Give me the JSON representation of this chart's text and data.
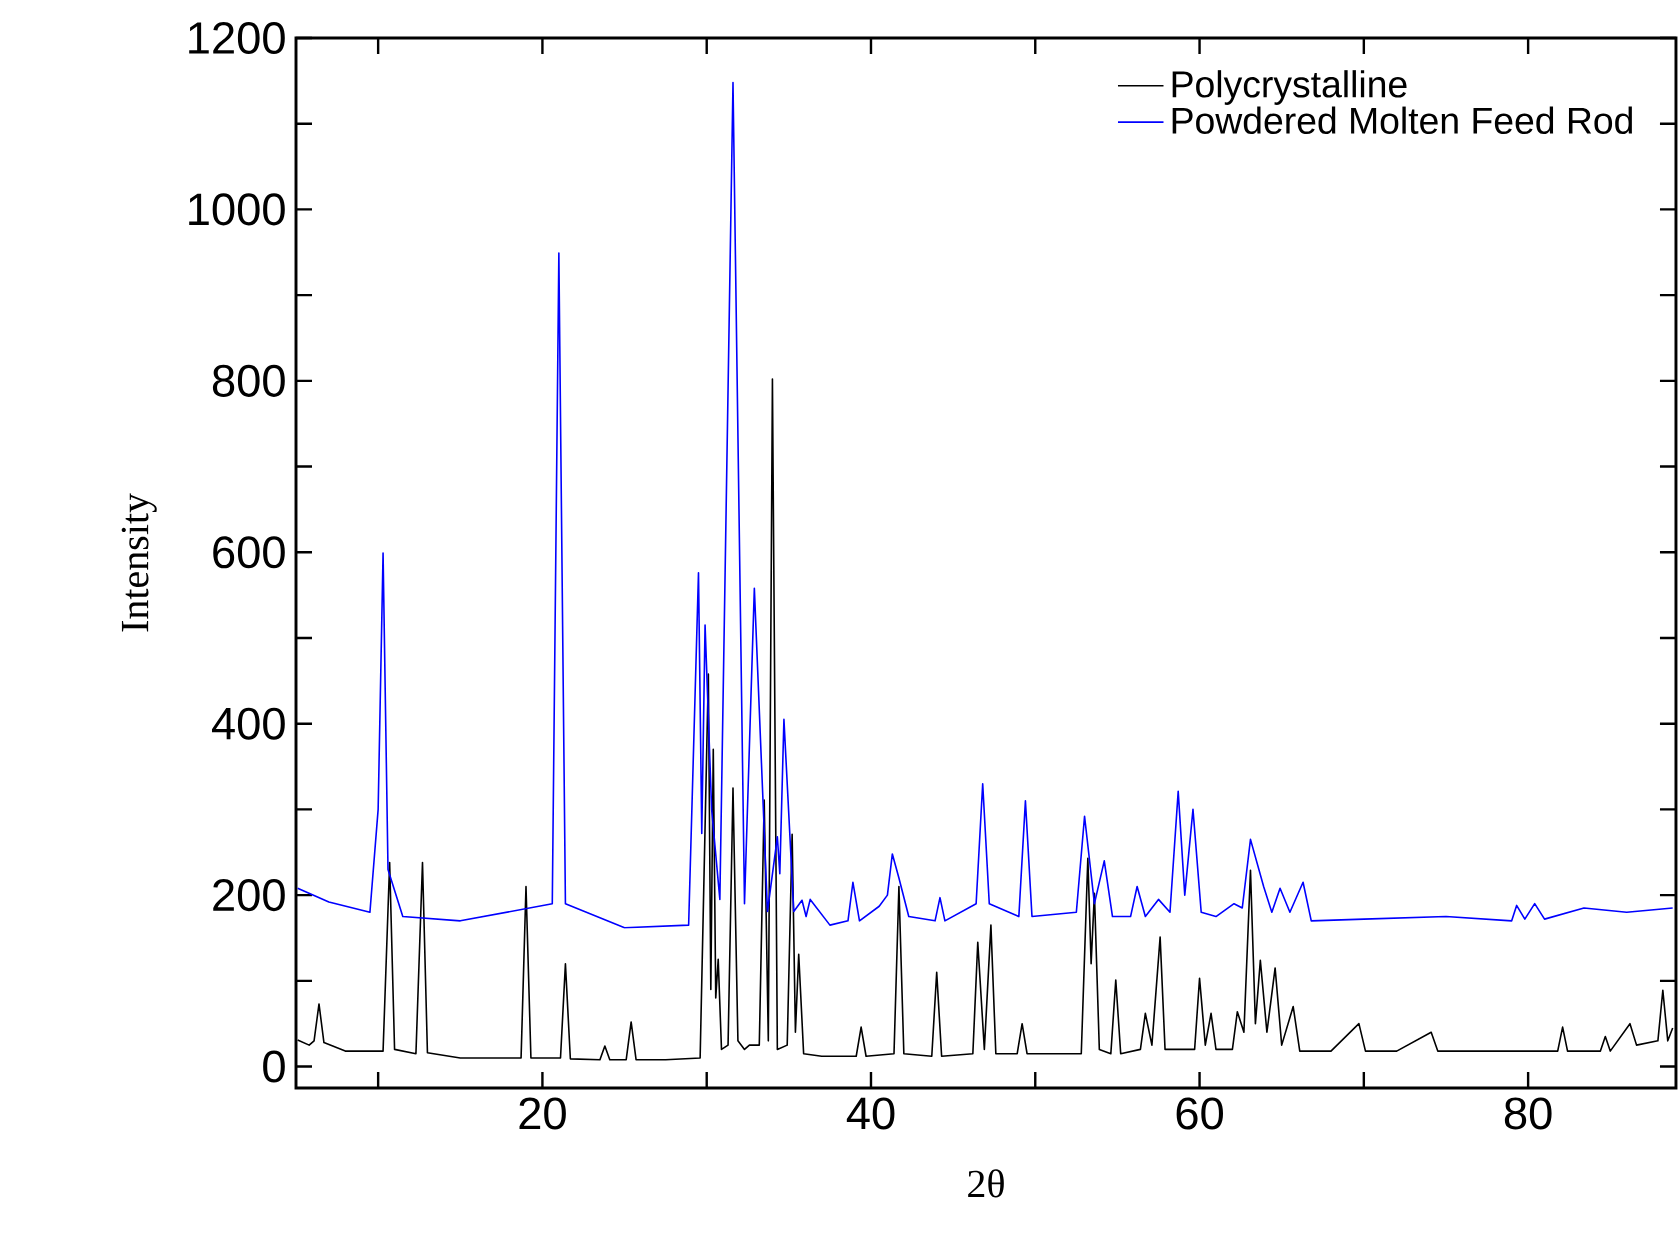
{
  "chart_data": {
    "type": "line",
    "xlabel": "2θ",
    "ylabel": "Intensity",
    "xlim": [
      5,
      89
    ],
    "ylim": [
      -25,
      1200
    ],
    "xticks": [
      {
        "value": 10,
        "label": null
      },
      20,
      {
        "value": 30,
        "label": null
      },
      40,
      {
        "value": 50,
        "label": null
      },
      60,
      {
        "value": 70,
        "label": null
      },
      80
    ],
    "yticks": [
      0,
      {
        "value": 100,
        "label": null
      },
      200,
      {
        "value": 300,
        "label": null
      },
      400,
      {
        "value": 500,
        "label": null
      },
      600,
      {
        "value": 700,
        "label": null
      },
      800,
      {
        "value": 900,
        "label": null
      },
      1000,
      {
        "value": 1100,
        "label": null
      },
      1200
    ],
    "legend": "top right",
    "series": [
      {
        "name": "Polycrystalline",
        "color": "#000000",
        "x": [
          5.1,
          5.8,
          6.1,
          6.4,
          6.7,
          8.0,
          10.3,
          10.7,
          11.0,
          12.3,
          12.7,
          13.0,
          15.0,
          18.7,
          19.0,
          19.3,
          21.1,
          21.4,
          21.7,
          23.5,
          23.8,
          24.1,
          25.1,
          25.4,
          25.7,
          27.5,
          29.6,
          30.1,
          30.25,
          30.4,
          30.55,
          30.7,
          30.9,
          31.3,
          31.6,
          31.9,
          32.3,
          32.6,
          33.2,
          33.5,
          33.75,
          34.0,
          34.3,
          34.9,
          35.2,
          35.4,
          35.6,
          35.9,
          37.0,
          39.1,
          39.4,
          39.7,
          41.4,
          41.7,
          42.0,
          43.7,
          44.0,
          44.3,
          46.2,
          46.5,
          46.9,
          47.3,
          47.6,
          48.9,
          49.2,
          49.5,
          52.8,
          53.2,
          53.4,
          53.6,
          53.9,
          54.6,
          54.9,
          55.2,
          56.4,
          56.7,
          57.1,
          57.6,
          57.9,
          59.7,
          60.0,
          60.35,
          60.7,
          61.0,
          62.0,
          62.3,
          62.7,
          63.1,
          63.4,
          63.7,
          64.1,
          64.6,
          65.0,
          65.7,
          66.1,
          68.0,
          69.7,
          70.1,
          72.0,
          74.1,
          74.5,
          78.0,
          81.8,
          82.1,
          82.4,
          84.4,
          84.7,
          85.0,
          86.2,
          86.6,
          87.9,
          88.2,
          88.5,
          88.8
        ],
        "values": [
          31,
          25,
          30,
          73,
          28,
          18,
          18,
          238,
          20,
          15,
          238,
          16,
          10,
          10,
          210,
          10,
          10,
          120,
          9,
          8,
          24,
          8,
          8,
          52,
          8,
          8,
          10,
          458,
          90,
          370,
          80,
          125,
          20,
          25,
          325,
          30,
          20,
          25,
          25,
          311,
          30,
          802,
          20,
          25,
          271,
          40,
          131,
          15,
          12,
          12,
          46,
          12,
          15,
          210,
          15,
          12,
          110,
          12,
          15,
          145,
          20,
          165,
          15,
          15,
          50,
          15,
          15,
          243,
          120,
          202,
          20,
          15,
          101,
          15,
          20,
          62,
          25,
          151,
          20,
          20,
          103,
          25,
          62,
          20,
          20,
          64,
          40,
          229,
          50,
          124,
          40,
          115,
          25,
          70,
          18,
          18,
          50,
          18,
          18,
          40,
          18,
          18,
          18,
          46,
          18,
          18,
          35,
          18,
          50,
          25,
          30,
          89,
          30,
          45
        ]
      },
      {
        "name": "Powdered Molten Feed Rod",
        "color": "#0000ff",
        "x": [
          5.1,
          7.0,
          9.5,
          10.0,
          10.3,
          10.6,
          11.5,
          15.0,
          20.6,
          21.0,
          21.4,
          25.0,
          28.9,
          29.5,
          29.7,
          29.9,
          30.3,
          30.8,
          31.6,
          32.3,
          32.9,
          33.7,
          34.3,
          34.45,
          34.7,
          35.3,
          35.8,
          36.05,
          36.3,
          37.5,
          38.6,
          38.9,
          39.3,
          40.5,
          41.0,
          41.3,
          41.7,
          42.3,
          43.9,
          44.2,
          44.5,
          46.4,
          46.8,
          47.2,
          49.0,
          49.4,
          49.8,
          52.5,
          53.0,
          53.6,
          54.2,
          54.7,
          55.8,
          56.2,
          56.7,
          57.5,
          58.2,
          58.7,
          59.1,
          59.6,
          60.1,
          61.0,
          62.1,
          62.6,
          63.1,
          63.9,
          64.4,
          64.9,
          65.5,
          66.3,
          66.8,
          70.0,
          75.0,
          79.0,
          79.3,
          79.8,
          80.4,
          81.0,
          83.4,
          86.0,
          88.8
        ],
        "values": [
          208,
          192,
          180,
          300,
          599,
          230,
          175,
          170,
          190,
          949,
          190,
          162,
          165,
          576,
          272,
          515,
          300,
          195,
          1148,
          190,
          558,
          181,
          268,
          225,
          405,
          181,
          194,
          175,
          195,
          165,
          170,
          215,
          170,
          187,
          200,
          248,
          220,
          175,
          170,
          197,
          170,
          190,
          330,
          190,
          175,
          310,
          175,
          180,
          292,
          190,
          240,
          175,
          175,
          210,
          175,
          195,
          180,
          321,
          200,
          300,
          180,
          175,
          190,
          185,
          265,
          210,
          180,
          208,
          180,
          215,
          170,
          172,
          175,
          170,
          188,
          172,
          190,
          172,
          185,
          180,
          185
        ]
      }
    ]
  }
}
